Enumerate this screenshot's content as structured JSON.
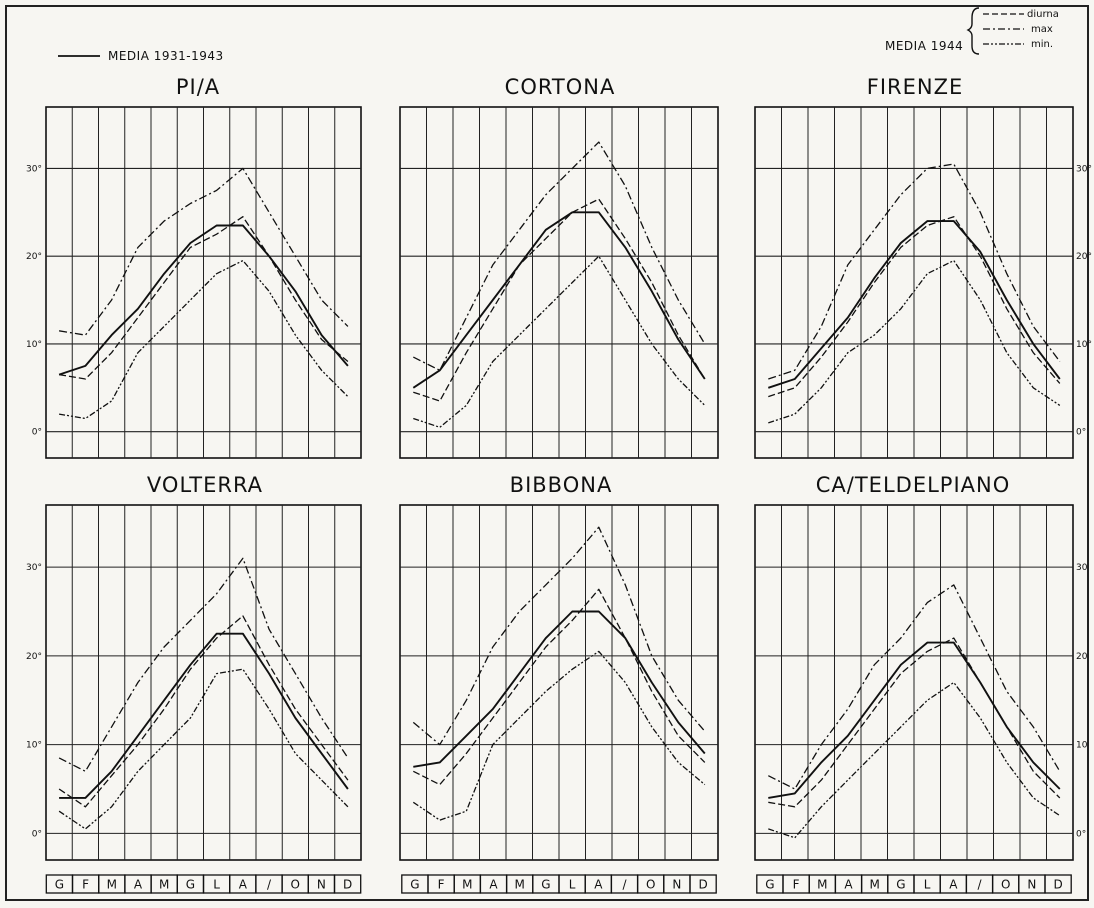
{
  "legend": {
    "left_label": "MEDIA 1931-1943",
    "right_label": "MEDIA 1944",
    "right_items": [
      "diurna",
      "max",
      "min."
    ]
  },
  "months": [
    "G",
    "F",
    "M",
    "A",
    "M",
    "G",
    "L",
    "A",
    "/",
    "O",
    "N",
    "D"
  ],
  "chart_data": [
    {
      "type": "line",
      "title": "PI/A",
      "x": [
        "G",
        "F",
        "M",
        "A",
        "M",
        "G",
        "L",
        "A",
        "/",
        "O",
        "N",
        "D"
      ],
      "ylim": [
        -3,
        37
      ],
      "yticks": [
        "0°",
        "10°",
        "20°",
        "30°"
      ],
      "ytick_side": "left",
      "series": [
        {
          "name": "MEDIA 1931-1943",
          "style": "solid",
          "values": [
            6.5,
            7.5,
            11,
            14,
            18,
            21.5,
            23.5,
            23.5,
            20,
            16,
            11,
            7.5
          ]
        },
        {
          "name": "diurna",
          "style": "dashed",
          "values": [
            6.5,
            6,
            9,
            13,
            17,
            21,
            22.5,
            24.5,
            20,
            15,
            10.5,
            8
          ]
        },
        {
          "name": "max",
          "style": "dashdot",
          "values": [
            11.5,
            11,
            15,
            21,
            24,
            26,
            27.5,
            30,
            25,
            20,
            15,
            12
          ]
        },
        {
          "name": "min.",
          "style": "dashdotdot",
          "values": [
            2,
            1.5,
            3.5,
            9,
            12,
            15,
            18,
            19.5,
            16,
            11,
            7,
            4
          ]
        }
      ]
    },
    {
      "type": "line",
      "title": "CORTONA",
      "x": [
        "G",
        "F",
        "M",
        "A",
        "M",
        "G",
        "L",
        "A",
        "/",
        "O",
        "N",
        "D"
      ],
      "ylim": [
        -3,
        37
      ],
      "yticks": [],
      "ytick_side": "none",
      "series": [
        {
          "name": "MEDIA 1931-1943",
          "style": "solid",
          "values": [
            5,
            7,
            11,
            15,
            19,
            23,
            25,
            25,
            21,
            16,
            10.5,
            6
          ]
        },
        {
          "name": "diurna",
          "style": "dashed",
          "values": [
            4.5,
            3.5,
            9,
            14,
            19,
            22,
            25,
            26.5,
            22,
            17,
            11,
            6
          ]
        },
        {
          "name": "max",
          "style": "dashdot",
          "values": [
            8.5,
            7,
            13,
            19,
            23,
            27,
            30,
            33,
            28,
            21,
            15,
            10
          ]
        },
        {
          "name": "min.",
          "style": "dashdotdot",
          "values": [
            1.5,
            0.5,
            3,
            8,
            11,
            14,
            17,
            20,
            15,
            10,
            6,
            3
          ]
        }
      ]
    },
    {
      "type": "line",
      "title": "FIRENZE",
      "x": [
        "G",
        "F",
        "M",
        "A",
        "M",
        "G",
        "L",
        "A",
        "/",
        "O",
        "N",
        "D"
      ],
      "ylim": [
        -3,
        37
      ],
      "yticks": [
        "0°",
        "10°",
        "20°",
        "30°"
      ],
      "ytick_side": "right",
      "series": [
        {
          "name": "MEDIA 1931-1943",
          "style": "solid",
          "values": [
            5,
            6,
            9.5,
            13,
            17.5,
            21.5,
            24,
            24,
            20.5,
            15,
            10,
            6
          ]
        },
        {
          "name": "diurna",
          "style": "dashed",
          "values": [
            4,
            5,
            8.5,
            12.5,
            17,
            21,
            23.5,
            24.5,
            20,
            14,
            9,
            5.5
          ]
        },
        {
          "name": "max",
          "style": "dashdot",
          "values": [
            6,
            7,
            12,
            19,
            23,
            27,
            30,
            30.5,
            25,
            18,
            12,
            8
          ]
        },
        {
          "name": "min.",
          "style": "dashdotdot",
          "values": [
            1,
            2,
            5,
            9,
            11,
            14,
            18,
            19.5,
            15,
            9,
            5,
            3
          ]
        }
      ]
    },
    {
      "type": "line",
      "title": "VOLTERRA",
      "x": [
        "G",
        "F",
        "M",
        "A",
        "M",
        "G",
        "L",
        "A",
        "/",
        "O",
        "N",
        "D"
      ],
      "ylim": [
        -3,
        37
      ],
      "yticks": [
        "0°",
        "10°",
        "20°",
        "30°"
      ],
      "ytick_side": "left",
      "series": [
        {
          "name": "MEDIA 1931-1943",
          "style": "solid",
          "values": [
            4,
            4,
            7,
            11,
            15,
            19,
            22.5,
            22.5,
            18,
            13,
            9,
            5
          ]
        },
        {
          "name": "diurna",
          "style": "dashed",
          "values": [
            5,
            3,
            6.5,
            10,
            14,
            18.5,
            22,
            24.5,
            19,
            14,
            10,
            6
          ]
        },
        {
          "name": "max",
          "style": "dashdot",
          "values": [
            8.5,
            7,
            12,
            17,
            21,
            24,
            27,
            31,
            23,
            18,
            13,
            8.5
          ]
        },
        {
          "name": "min.",
          "style": "dashdotdot",
          "values": [
            2.5,
            0.5,
            3,
            7,
            10,
            13,
            18,
            18.5,
            14,
            9,
            6,
            3
          ]
        }
      ]
    },
    {
      "type": "line",
      "title": "BIBBONA",
      "x": [
        "G",
        "F",
        "M",
        "A",
        "M",
        "G",
        "L",
        "A",
        "/",
        "O",
        "N",
        "D"
      ],
      "ylim": [
        -3,
        37
      ],
      "yticks": [],
      "ytick_side": "none",
      "series": [
        {
          "name": "MEDIA 1931-1943",
          "style": "solid",
          "values": [
            7.5,
            8,
            11,
            14,
            18,
            22,
            25,
            25,
            22,
            17,
            12.5,
            9
          ]
        },
        {
          "name": "diurna",
          "style": "dashed",
          "values": [
            7,
            5.5,
            9,
            13,
            17,
            21,
            24,
            27.5,
            22,
            16,
            11,
            8
          ]
        },
        {
          "name": "max",
          "style": "dashdot",
          "values": [
            12.5,
            10,
            15,
            21,
            25,
            28,
            31,
            34.5,
            28,
            20,
            15,
            11.5
          ]
        },
        {
          "name": "min.",
          "style": "dashdotdot",
          "values": [
            3.5,
            1.5,
            2.5,
            10,
            13,
            16,
            18.5,
            20.5,
            17,
            12,
            8,
            5.5
          ]
        }
      ]
    },
    {
      "type": "line",
      "title": "CA/TELDELPIANO",
      "x": [
        "G",
        "F",
        "M",
        "A",
        "M",
        "G",
        "L",
        "A",
        "/",
        "O",
        "N",
        "D"
      ],
      "ylim": [
        -3,
        37
      ],
      "yticks": [
        "0°",
        "10",
        "20",
        "30"
      ],
      "ytick_side": "right",
      "series": [
        {
          "name": "MEDIA 1931-1943",
          "style": "solid",
          "values": [
            4,
            4.5,
            8,
            11,
            15,
            19,
            21.5,
            21.5,
            17,
            12,
            8,
            5
          ]
        },
        {
          "name": "diurna",
          "style": "dashed",
          "values": [
            3.5,
            3,
            6,
            10,
            14,
            18,
            20.5,
            22,
            17,
            12,
            7,
            4
          ]
        },
        {
          "name": "max",
          "style": "dashdot",
          "values": [
            6.5,
            5,
            10,
            14,
            19,
            22,
            26,
            28,
            22,
            16,
            12,
            7
          ]
        },
        {
          "name": "min.",
          "style": "dashdotdot",
          "values": [
            0.5,
            -0.5,
            3,
            6,
            9,
            12,
            15,
            17,
            13,
            8,
            4,
            2
          ]
        }
      ]
    }
  ]
}
